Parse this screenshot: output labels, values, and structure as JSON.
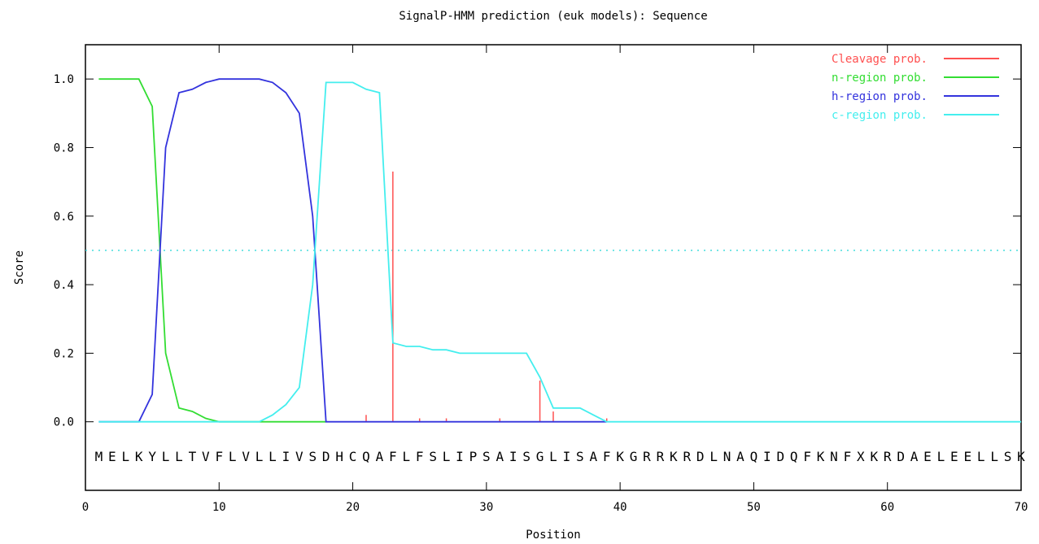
{
  "chart_data": {
    "type": "line",
    "title": "SignalP-HMM prediction (euk models): Sequence",
    "xlabel": "Position",
    "ylabel": "Score",
    "xlim": [
      0,
      70
    ],
    "ylim": [
      -0.2,
      1.1
    ],
    "xticks": [
      0,
      10,
      20,
      30,
      40,
      50,
      60,
      70
    ],
    "yticks": [
      0.0,
      0.2,
      0.4,
      0.6,
      0.8,
      1.0
    ],
    "xtick_labels": [
      "0",
      "10",
      "20",
      "30",
      "40",
      "50",
      "60",
      "70"
    ],
    "ytick_labels": [
      "0.0",
      "0.2",
      "0.4",
      "0.6",
      "0.8",
      "1.0"
    ],
    "threshold": 0.5,
    "sequence": "MELKYLLTVFLVLLIVSDHCQAFLFSLIPSAISGLISAFKGRRKRDLNAQIDQFKNFXKRDAELEELLSK",
    "legend_position": "top-right",
    "series": [
      {
        "name": "Cleavage prob.",
        "color": "#ff5050",
        "style": "impulse",
        "points": [
          [
            21,
            0.02
          ],
          [
            23,
            0.73
          ],
          [
            25,
            0.01
          ],
          [
            27,
            0.01
          ],
          [
            31,
            0.01
          ],
          [
            34,
            0.12
          ],
          [
            35,
            0.03
          ],
          [
            39,
            0.01
          ]
        ]
      },
      {
        "name": "n-region prob.",
        "color": "#33dd33",
        "style": "line",
        "points": [
          [
            1,
            1.0
          ],
          [
            2,
            1.0
          ],
          [
            3,
            1.0
          ],
          [
            4,
            1.0
          ],
          [
            5,
            0.92
          ],
          [
            6,
            0.2
          ],
          [
            7,
            0.04
          ],
          [
            8,
            0.03
          ],
          [
            9,
            0.01
          ],
          [
            10,
            0.0
          ],
          [
            18,
            0.0
          ]
        ]
      },
      {
        "name": "h-region prob.",
        "color": "#3333dd",
        "style": "line",
        "points": [
          [
            1,
            0.0
          ],
          [
            4,
            0.0
          ],
          [
            5,
            0.08
          ],
          [
            6,
            0.8
          ],
          [
            7,
            0.96
          ],
          [
            8,
            0.97
          ],
          [
            9,
            0.99
          ],
          [
            10,
            1.0
          ],
          [
            11,
            1.0
          ],
          [
            12,
            1.0
          ],
          [
            13,
            1.0
          ],
          [
            14,
            0.99
          ],
          [
            15,
            0.96
          ],
          [
            16,
            0.9
          ],
          [
            17,
            0.6
          ],
          [
            18,
            0.0
          ],
          [
            39,
            0.0
          ]
        ]
      },
      {
        "name": "c-region prob.",
        "color": "#44eeee",
        "style": "line",
        "points": [
          [
            1,
            0.0
          ],
          [
            13,
            0.0
          ],
          [
            14,
            0.02
          ],
          [
            15,
            0.05
          ],
          [
            16,
            0.1
          ],
          [
            17,
            0.4
          ],
          [
            18,
            0.99
          ],
          [
            20,
            0.99
          ],
          [
            21,
            0.97
          ],
          [
            22,
            0.96
          ],
          [
            23,
            0.23
          ],
          [
            24,
            0.22
          ],
          [
            25,
            0.22
          ],
          [
            26,
            0.21
          ],
          [
            27,
            0.21
          ],
          [
            28,
            0.2
          ],
          [
            29,
            0.2
          ],
          [
            30,
            0.2
          ],
          [
            31,
            0.2
          ],
          [
            32,
            0.2
          ],
          [
            33,
            0.2
          ],
          [
            34,
            0.13
          ],
          [
            35,
            0.04
          ],
          [
            36,
            0.04
          ],
          [
            37,
            0.04
          ],
          [
            38,
            0.02
          ],
          [
            39,
            0.0
          ],
          [
            70,
            0.0
          ]
        ]
      }
    ]
  }
}
